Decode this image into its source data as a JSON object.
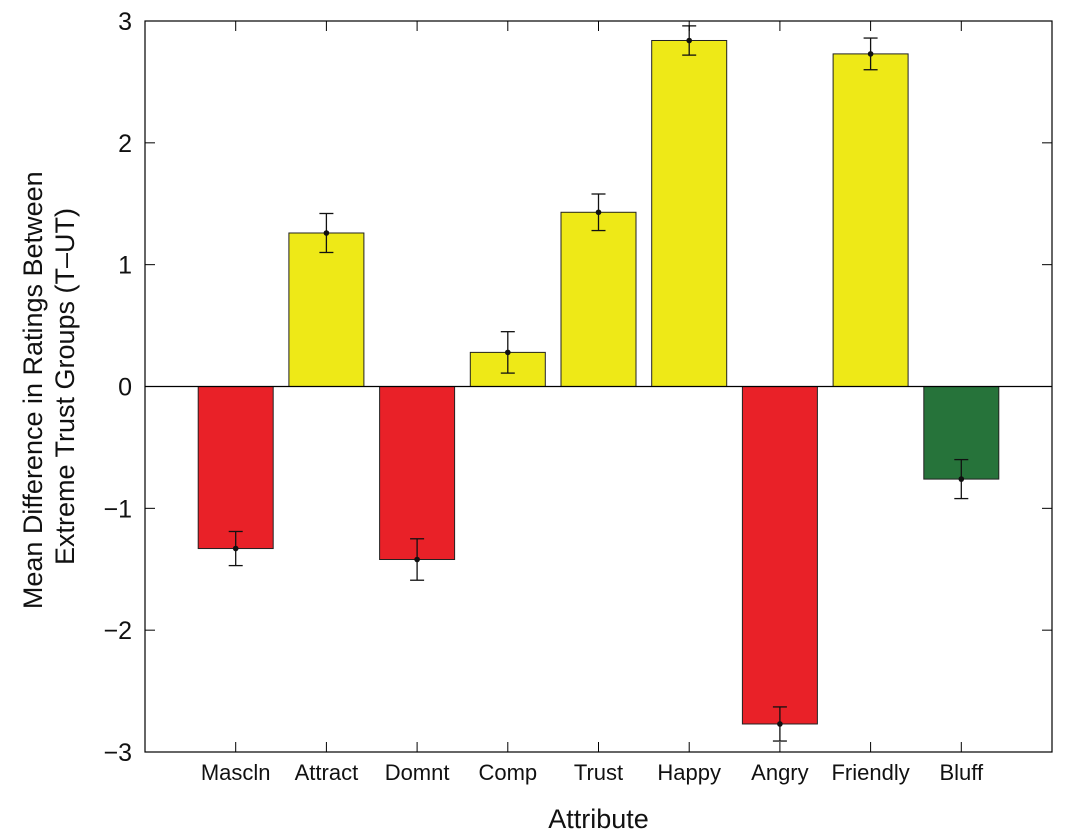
{
  "chart_data": {
    "type": "bar",
    "categories": [
      "Mascln",
      "Attract",
      "Domnt",
      "Comp",
      "Trust",
      "Happy",
      "Angry",
      "Friendly",
      "Bluff"
    ],
    "values": [
      -1.33,
      1.26,
      -1.42,
      0.28,
      1.43,
      2.84,
      -2.77,
      2.73,
      -0.76
    ],
    "error": [
      0.14,
      0.16,
      0.17,
      0.17,
      0.15,
      0.12,
      0.14,
      0.13,
      0.16
    ],
    "bar_colors": [
      "#e92128",
      "#eee917",
      "#e92128",
      "#eee917",
      "#eee917",
      "#eee917",
      "#e92128",
      "#eee917",
      "#26733a"
    ],
    "xlabel": "Attribute",
    "ylabel_lines": [
      "Mean Difference in Ratings Between",
      "Extreme Trust Groups (T–UT)"
    ],
    "ylim": [
      -3,
      3
    ],
    "yticks": [
      -3,
      -2,
      -1,
      0,
      1,
      2,
      3
    ],
    "ytick_labels": [
      "−3",
      "−2",
      "−1",
      "0",
      "1",
      "2",
      "3"
    ],
    "grid": false,
    "legend": "none"
  }
}
